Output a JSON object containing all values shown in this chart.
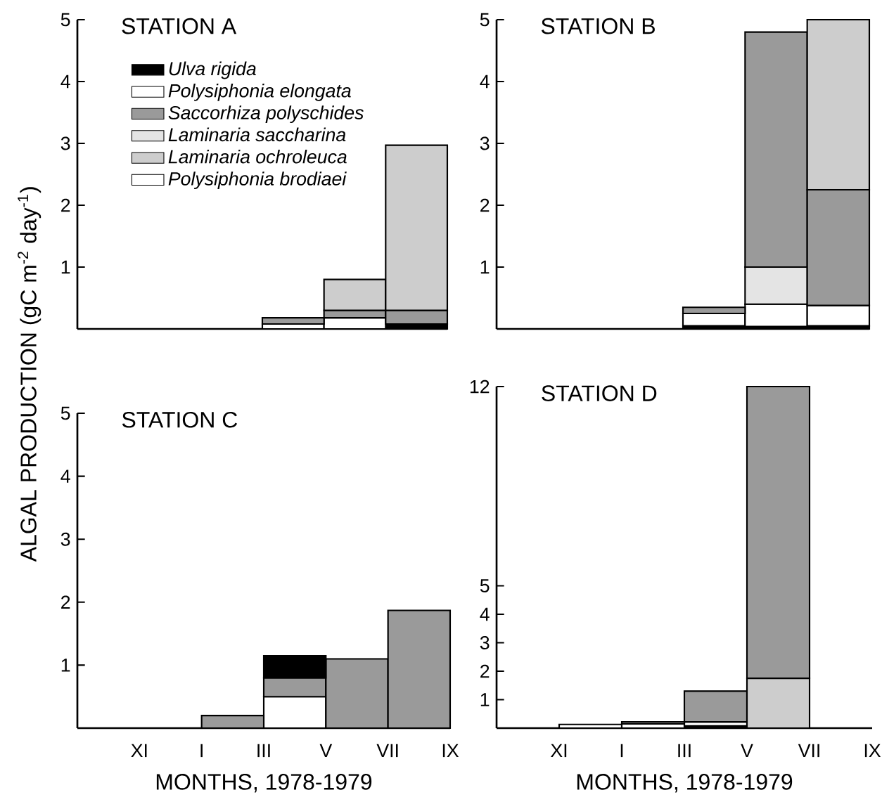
{
  "chart_data": [
    {
      "type": "bar",
      "title": "STATION A",
      "ylabel": "ALGAL PRODUCTION (gC m$^{-2}$ day$^{-1}$)",
      "categories": [
        null,
        null,
        null,
        null,
        null,
        null
      ],
      "ylim": [
        0,
        5
      ],
      "yticks": [
        1,
        2,
        3,
        4,
        5
      ],
      "legend": "top left",
      "series": [
        {
          "name": "*Ulva rigida*",
          "color": "#000000",
          "values": [
            null,
            null,
            null,
            null,
            null,
            0.08
          ],
          "base": [
            null,
            null,
            null,
            null,
            null,
            0
          ]
        },
        {
          "name": "*Polysiphonia elongata*",
          "color": "#ffffff",
          "values": [
            null,
            null,
            null,
            0.08,
            0.18,
            null
          ],
          "base": [
            null,
            null,
            null,
            0,
            0,
            null
          ]
        },
        {
          "name": "*Saccorhiza polyschides*",
          "color": "#9a9a9a",
          "values": [
            null,
            null,
            null,
            0.1,
            0.12,
            0.22
          ],
          "base": [
            null,
            null,
            null,
            0.08,
            0.18,
            0.08
          ]
        },
        {
          "name": "*Laminaria saccharina*",
          "color": "#e4e4e4",
          "values": [
            null,
            null,
            null,
            null,
            null,
            null
          ],
          "base": [
            null,
            null,
            null,
            null,
            null,
            null
          ]
        },
        {
          "name": "*Laminaria ochroleuca*",
          "color": "#cdcdcd",
          "values": [
            null,
            null,
            null,
            null,
            0.5,
            2.67
          ],
          "base": [
            null,
            null,
            null,
            null,
            0.3,
            0.3
          ]
        },
        {
          "name": "*Polysiphonia brodiaei*",
          "color": "#ffffff",
          "values": [
            null,
            null,
            null,
            null,
            null,
            null
          ],
          "base": [
            null,
            null,
            null,
            null,
            null,
            null
          ]
        }
      ]
    },
    {
      "type": "bar",
      "title": "STATION B",
      "categories": [
        null,
        null,
        null,
        null,
        null,
        null
      ],
      "ylim": [
        0,
        5
      ],
      "yticks": [
        1,
        2,
        3,
        4,
        5
      ],
      "series": [
        {
          "color": "#000000",
          "values": [
            null,
            null,
            null,
            0.05,
            0.04,
            0.05
          ],
          "base": [
            null,
            null,
            null,
            0,
            0,
            0
          ]
        },
        {
          "color": "#ffffff",
          "values": [
            null,
            null,
            null,
            0.2,
            0.36,
            0.33
          ],
          "base": [
            null,
            null,
            null,
            0.05,
            0.04,
            0.05
          ]
        },
        {
          "color": "#e4e4e4",
          "values": [
            null,
            null,
            null,
            null,
            0.6,
            null
          ],
          "base": [
            null,
            null,
            null,
            null,
            0.4,
            null
          ]
        },
        {
          "color": "#9a9a9a",
          "values": [
            null,
            null,
            null,
            0.1,
            3.8,
            1.87
          ],
          "base": [
            null,
            null,
            null,
            0.25,
            1.0,
            0.38
          ]
        },
        {
          "color": "#cdcdcd",
          "values": [
            null,
            null,
            null,
            null,
            null,
            2.75
          ],
          "base": [
            null,
            null,
            null,
            null,
            null,
            2.25
          ]
        }
      ]
    },
    {
      "type": "bar",
      "title": "STATION C",
      "xlabel": "MONTHS, 1978-1979",
      "categories": [
        null,
        null,
        null,
        null,
        null,
        null
      ],
      "ylim": [
        0,
        5
      ],
      "yticks": [
        1,
        2,
        3,
        4,
        5
      ],
      "annotations": [
        "XI",
        "I",
        "III",
        "V",
        "VII",
        "IX"
      ],
      "series": [
        {
          "color": "#ffffff",
          "values": [
            null,
            null,
            null,
            0.5,
            null,
            null
          ],
          "base": [
            null,
            null,
            null,
            0,
            null,
            null
          ]
        },
        {
          "color": "#9a9a9a",
          "values": [
            null,
            null,
            0.2,
            0.3,
            1.1,
            1.87
          ],
          "base": [
            null,
            null,
            0,
            0.5,
            0,
            0
          ]
        },
        {
          "color": "#000000",
          "values": [
            null,
            null,
            null,
            0.35,
            null,
            null
          ],
          "base": [
            null,
            null,
            null,
            0.8,
            null,
            null
          ]
        }
      ]
    },
    {
      "type": "bar",
      "title": "STATION D",
      "xlabel": "MONTHS, 1978-1979",
      "categories": [
        null,
        null,
        null,
        null,
        null,
        null
      ],
      "ylim": [
        0,
        12
      ],
      "yticks": [
        1,
        2,
        3,
        4,
        5,
        12
      ],
      "annotations": [
        "XI",
        "I",
        "III",
        "V",
        "VII",
        "IX"
      ],
      "series": [
        {
          "color": "#000000",
          "values": [
            null,
            null,
            null,
            0.08,
            null,
            null
          ],
          "base": [
            null,
            null,
            null,
            0,
            null,
            null
          ]
        },
        {
          "color": "#ffffff",
          "values": [
            null,
            0.13,
            0.15,
            0.14,
            null,
            null
          ],
          "base": [
            null,
            0,
            0,
            0.08,
            null,
            null
          ]
        },
        {
          "color": "#9a9a9a",
          "values": [
            null,
            null,
            0.07,
            1.08,
            10.25,
            null
          ],
          "base": [
            null,
            null,
            0.15,
            0.22,
            1.75,
            null
          ]
        },
        {
          "color": "#cdcdcd",
          "values": [
            null,
            null,
            null,
            null,
            1.75,
            null
          ],
          "base": [
            null,
            null,
            null,
            null,
            0,
            null
          ]
        }
      ]
    }
  ]
}
